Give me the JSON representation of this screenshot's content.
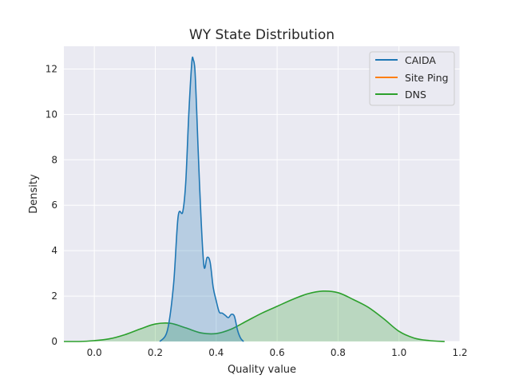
{
  "chart_data": {
    "type": "area",
    "title": "WY State Distribution",
    "xlabel": "Quality value",
    "ylabel": "Density",
    "xlim": [
      -0.1,
      1.2
    ],
    "ylim": [
      0,
      13
    ],
    "xticks": [
      0.0,
      0.2,
      0.4,
      0.6,
      0.8,
      1.0,
      1.2
    ],
    "xtick_labels": [
      "0.0",
      "0.2",
      "0.4",
      "0.6",
      "0.8",
      "1.0",
      "1.2"
    ],
    "yticks": [
      0,
      2,
      4,
      6,
      8,
      10,
      12
    ],
    "ytick_labels": [
      "0",
      "2",
      "4",
      "6",
      "8",
      "10",
      "12"
    ],
    "grid": true,
    "legend_position": "top-right",
    "series": [
      {
        "name": "CAIDA",
        "color": "#1f77b4",
        "fill": true,
        "x": [
          0.215,
          0.24,
          0.26,
          0.275,
          0.29,
          0.3,
          0.31,
          0.32,
          0.325,
          0.33,
          0.335,
          0.34,
          0.35,
          0.36,
          0.37,
          0.38,
          0.39,
          0.4,
          0.41,
          0.42,
          0.43,
          0.44,
          0.45,
          0.46,
          0.47,
          0.48,
          0.49
        ],
        "y": [
          0.0,
          0.5,
          2.5,
          5.5,
          5.7,
          7.0,
          10.0,
          12.3,
          12.4,
          12.0,
          10.5,
          8.7,
          5.5,
          3.3,
          3.7,
          3.5,
          2.4,
          1.8,
          1.3,
          1.25,
          1.15,
          1.05,
          1.2,
          1.1,
          0.5,
          0.15,
          0.0
        ]
      },
      {
        "name": "Site Ping",
        "color": "#ff7f0e",
        "fill": false,
        "x": [],
        "y": []
      },
      {
        "name": "DNS",
        "color": "#2ca02c",
        "fill": true,
        "x": [
          -0.1,
          -0.05,
          0.0,
          0.05,
          0.1,
          0.15,
          0.2,
          0.25,
          0.3,
          0.35,
          0.4,
          0.45,
          0.5,
          0.55,
          0.6,
          0.65,
          0.7,
          0.75,
          0.8,
          0.85,
          0.9,
          0.95,
          1.0,
          1.05,
          1.1,
          1.15
        ],
        "y": [
          0.0,
          0.0,
          0.04,
          0.12,
          0.3,
          0.55,
          0.77,
          0.8,
          0.6,
          0.38,
          0.35,
          0.55,
          0.9,
          1.25,
          1.55,
          1.85,
          2.1,
          2.22,
          2.15,
          1.85,
          1.5,
          1.0,
          0.45,
          0.15,
          0.04,
          0.0
        ]
      }
    ]
  }
}
